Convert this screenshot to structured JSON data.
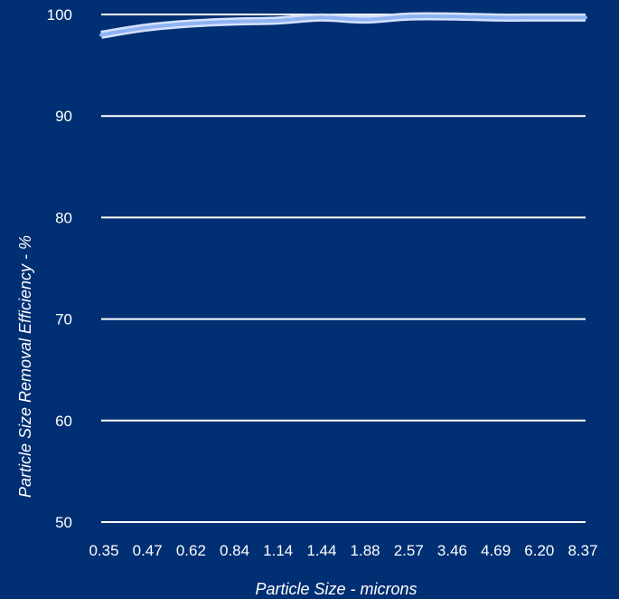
{
  "chart_data": {
    "type": "line",
    "xlabel": "Particle Size - microns",
    "ylabel": "Particle Size Removal Efficiency - %",
    "categories": [
      "0.35",
      "0.47",
      "0.62",
      "0.84",
      "1.14",
      "1.44",
      "1.88",
      "2.57",
      "3.46",
      "4.69",
      "6.20",
      "8.37"
    ],
    "y_ticks": [
      "100",
      "90",
      "80",
      "70",
      "60",
      "50"
    ],
    "ylim": [
      50,
      100
    ],
    "grid": true,
    "series": [
      {
        "values": [
          98.0,
          98.7,
          99.1,
          99.3,
          99.4,
          99.7,
          99.5,
          99.8,
          99.8,
          99.7,
          99.7,
          99.7
        ]
      }
    ],
    "colors": {
      "background": "#012f73",
      "grid": "#ffffff",
      "line_outer": "#d5e3ff",
      "line_inner": "#8fb3f2",
      "text": "#ffffff"
    }
  }
}
